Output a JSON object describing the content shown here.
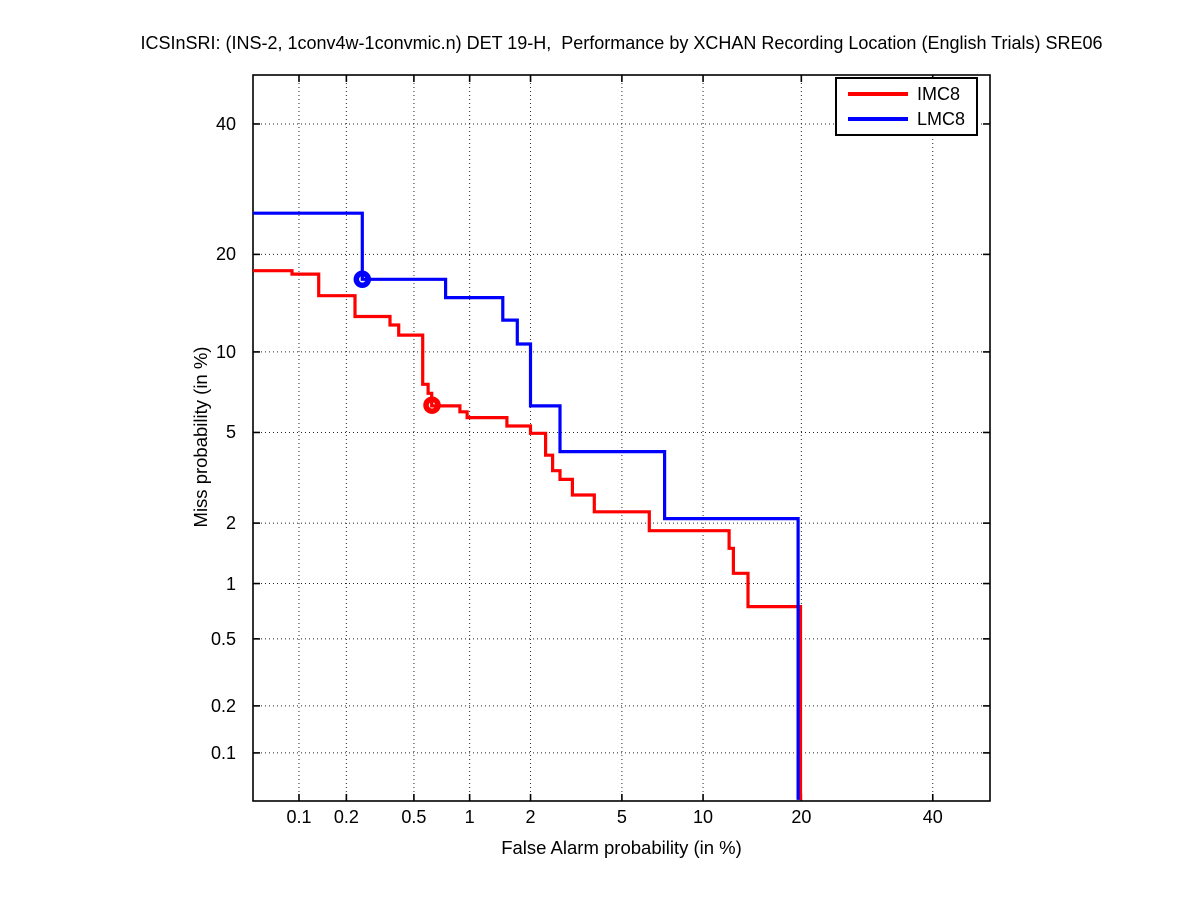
{
  "title": "ICSInSRI: (INS-2, 1conv4w-1convmic.n) DET 19-H,  Performance by XCHAN Recording Location (English Trials) SRE06",
  "legend": {
    "entries": [
      {
        "label": "IMC8",
        "color": "#ff0000"
      },
      {
        "label": "LMC8",
        "color": "#0000ff"
      }
    ]
  },
  "chart_data": {
    "type": "line",
    "subtype": "DET curve (stepped, probit-probit normal-deviate scale)",
    "title": "ICSInSRI: (INS-2, 1conv4w-1convmic.n) DET 19-H,  Performance by XCHAN Recording Location (English Trials) SRE06",
    "xlabel": "False Alarm probability (in %)",
    "ylabel": "Miss probability (in %)",
    "x_ticks_pct": [
      0.1,
      0.2,
      0.5,
      1,
      2,
      5,
      10,
      20,
      40
    ],
    "y_ticks_pct": [
      40,
      20,
      10,
      5,
      2,
      1,
      0.5,
      0.2,
      0.1
    ],
    "xlim_pct": [
      0.048,
      50
    ],
    "ylim_pct": [
      0.048,
      50
    ],
    "grid": "dotted",
    "legend_position": "top-right inside axes",
    "series": [
      {
        "name": "IMC8",
        "color": "#ff0000",
        "marker_point_pct": {
          "false_alarm": 0.63,
          "miss": 6.4
        },
        "points_pct": [
          [
            0.048,
            18.0
          ],
          [
            0.09,
            18.0
          ],
          [
            0.09,
            17.6
          ],
          [
            0.134,
            17.6
          ],
          [
            0.134,
            15.2
          ],
          [
            0.226,
            15.2
          ],
          [
            0.226,
            13.1
          ],
          [
            0.365,
            13.1
          ],
          [
            0.365,
            12.3
          ],
          [
            0.41,
            12.3
          ],
          [
            0.41,
            11.4
          ],
          [
            0.56,
            11.4
          ],
          [
            0.56,
            7.67
          ],
          [
            0.6,
            7.67
          ],
          [
            0.6,
            7.1
          ],
          [
            0.628,
            7.1
          ],
          [
            0.628,
            6.36
          ],
          [
            0.89,
            6.36
          ],
          [
            0.89,
            6.04
          ],
          [
            0.97,
            6.04
          ],
          [
            0.97,
            5.73
          ],
          [
            1.54,
            5.73
          ],
          [
            1.54,
            5.31
          ],
          [
            2.0,
            5.31
          ],
          [
            2.0,
            4.96
          ],
          [
            2.35,
            4.96
          ],
          [
            2.35,
            4.03
          ],
          [
            2.53,
            4.03
          ],
          [
            2.53,
            3.46
          ],
          [
            2.73,
            3.46
          ],
          [
            2.73,
            3.17
          ],
          [
            3.1,
            3.17
          ],
          [
            3.1,
            2.7
          ],
          [
            3.85,
            2.7
          ],
          [
            3.85,
            2.26
          ],
          [
            6.4,
            2.26
          ],
          [
            6.4,
            1.84
          ],
          [
            12.2,
            1.84
          ],
          [
            12.2,
            1.51
          ],
          [
            12.6,
            1.51
          ],
          [
            12.6,
            1.13
          ],
          [
            14.0,
            1.13
          ],
          [
            14.0,
            0.754
          ],
          [
            19.9,
            0.754
          ],
          [
            19.9,
            0.048
          ]
        ]
      },
      {
        "name": "LMC8",
        "color": "#0000ff",
        "marker_point_pct": {
          "false_alarm": 0.25,
          "miss": 17.0
        },
        "points_pct": [
          [
            0.048,
            25.6
          ],
          [
            0.25,
            25.6
          ],
          [
            0.25,
            17.0
          ],
          [
            0.747,
            17.0
          ],
          [
            0.747,
            15.0
          ],
          [
            1.47,
            15.0
          ],
          [
            1.47,
            12.76
          ],
          [
            1.73,
            12.76
          ],
          [
            1.73,
            10.64
          ],
          [
            2.0,
            10.64
          ],
          [
            2.0,
            6.36
          ],
          [
            2.73,
            6.36
          ],
          [
            2.73,
            4.17
          ],
          [
            7.3,
            4.17
          ],
          [
            7.3,
            2.1
          ],
          [
            19.6,
            2.1
          ],
          [
            19.6,
            0.048
          ]
        ]
      }
    ]
  }
}
